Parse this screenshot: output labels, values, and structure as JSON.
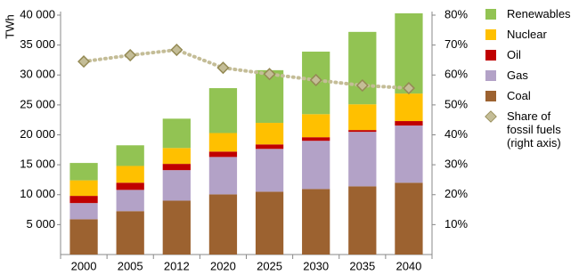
{
  "chart_data": {
    "type": "bar",
    "stacked": true,
    "y_label": "TWh",
    "categories": [
      "2000",
      "2005",
      "2012",
      "2020",
      "2025",
      "2030",
      "2035",
      "2040"
    ],
    "series": [
      {
        "name": "Coal",
        "color": "#9c6230",
        "values": [
          5900,
          7250,
          9000,
          10050,
          10500,
          10950,
          11400,
          12000
        ]
      },
      {
        "name": "Gas",
        "color": "#b3a2c7",
        "values": [
          2700,
          3550,
          5100,
          6250,
          7150,
          8050,
          9100,
          9550
        ]
      },
      {
        "name": "Oil",
        "color": "#c00000",
        "values": [
          1200,
          1200,
          1050,
          900,
          750,
          600,
          300,
          750
        ]
      },
      {
        "name": "Nuclear",
        "color": "#ffc000",
        "values": [
          2600,
          2800,
          2650,
          3100,
          3600,
          3850,
          4300,
          4600
        ]
      },
      {
        "name": "Renewables",
        "color": "#92c353",
        "values": [
          2900,
          3450,
          4900,
          7500,
          8800,
          10450,
          12100,
          13400
        ]
      },
      {
        "name": "Share of fossil fuels (right axis)",
        "color": "#c4bd97",
        "axis": "y2",
        "values": [
          64.5,
          66.6,
          68.4,
          62.4,
          60.3,
          58.3,
          56.5,
          55.6
        ]
      }
    ],
    "ylim": [
      0,
      40000
    ],
    "yticks": [
      {
        "value": 5000,
        "label": "5 000"
      },
      {
        "value": 10000,
        "label": "10 000"
      },
      {
        "value": 15000,
        "label": "15 000"
      },
      {
        "value": 20000,
        "label": "20 000"
      },
      {
        "value": 25000,
        "label": "25 000"
      },
      {
        "value": 30000,
        "label": "30 000"
      },
      {
        "value": 35000,
        "label": "35 000"
      },
      {
        "value": 40000,
        "label": "40 000"
      }
    ],
    "y2lim": [
      0,
      80
    ],
    "y2ticks": [
      {
        "value": 10,
        "label": "10%"
      },
      {
        "value": 20,
        "label": "20%"
      },
      {
        "value": 30,
        "label": "30%"
      },
      {
        "value": 40,
        "label": "40%"
      },
      {
        "value": 50,
        "label": "50%"
      },
      {
        "value": 60,
        "label": "60%"
      },
      {
        "value": 70,
        "label": "70%"
      },
      {
        "value": 80,
        "label": "80%"
      }
    ],
    "legend": "right"
  }
}
